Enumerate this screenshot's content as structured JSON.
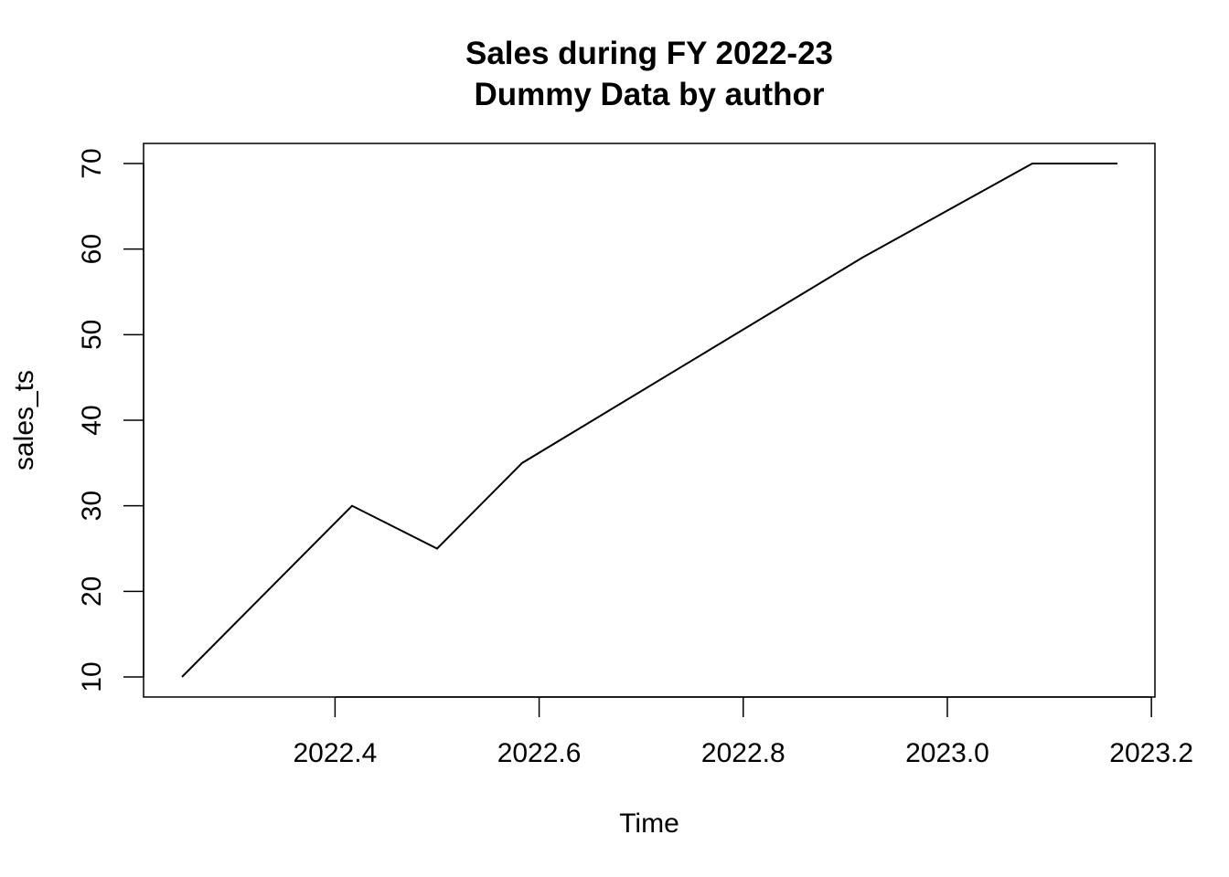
{
  "chart_data": {
    "type": "line",
    "title": "Sales during FY 2022-23",
    "subtitle": "Dummy Data by author",
    "xlabel": "Time",
    "ylabel": "sales_ts",
    "xlim": [
      2022.25,
      2023.1667
    ],
    "ylim": [
      10,
      70
    ],
    "grid": false,
    "x_ticks": [
      2022.4,
      2022.6,
      2022.8,
      2023.0,
      2023.2
    ],
    "x_tick_labels": [
      "2022.4",
      "2022.6",
      "2022.8",
      "2023.0",
      "2023.2"
    ],
    "y_ticks": [
      10,
      20,
      30,
      40,
      50,
      60,
      70
    ],
    "y_tick_labels": [
      "10",
      "20",
      "30",
      "40",
      "50",
      "60",
      "70"
    ],
    "series": [
      {
        "x": [
          2022.25,
          2022.3333,
          2022.4167,
          2022.5,
          2022.5833,
          2022.6667,
          2022.75,
          2022.8333,
          2022.9167,
          2023.0,
          2023.0833,
          2023.1667
        ],
        "values": [
          10,
          20,
          30,
          25,
          35,
          41,
          47,
          53,
          59,
          64.5,
          70,
          70
        ],
        "color": "#000000"
      }
    ]
  }
}
